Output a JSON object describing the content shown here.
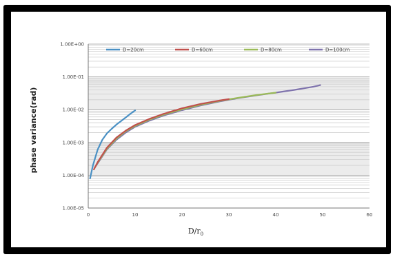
{
  "chart_data": {
    "type": "line",
    "title": "",
    "ylabel": "phase variance(rad)",
    "xlabel_main": "D/r",
    "xlabel_sub": "0",
    "y_scale": "log",
    "ylim": [
      1e-05,
      1
    ],
    "xlim": [
      0,
      60
    ],
    "x_ticks": [
      0,
      10,
      20,
      30,
      40,
      50,
      60
    ],
    "y_ticks": [
      {
        "value": 1,
        "label": "1.00E+00"
      },
      {
        "value": 0.1,
        "label": "1.00E-01"
      },
      {
        "value": 0.01,
        "label": "1.00E-02"
      },
      {
        "value": 0.001,
        "label": "1.00E-03"
      },
      {
        "value": 0.0001,
        "label": "1.00E-04"
      },
      {
        "value": 1e-05,
        "label": "1.00E-05"
      }
    ],
    "grid": true,
    "legend_position": "top",
    "series": [
      {
        "name": "D=20cm",
        "color": "#4a90c4",
        "points": [
          [
            0.4,
            8e-05
          ],
          [
            1,
            0.0002
          ],
          [
            2,
            0.0006
          ],
          [
            3,
            0.0012
          ],
          [
            4,
            0.0019
          ],
          [
            5,
            0.0026
          ],
          [
            6,
            0.0035
          ],
          [
            7,
            0.0045
          ],
          [
            8,
            0.0058
          ],
          [
            9,
            0.0075
          ],
          [
            10,
            0.0095
          ]
        ]
      },
      {
        "name": "D=60cm",
        "color": "#c0504d",
        "points": [
          [
            1.2,
            0.00015
          ],
          [
            2,
            0.00025
          ],
          [
            4,
            0.0007
          ],
          [
            6,
            0.0014
          ],
          [
            8,
            0.0023
          ],
          [
            10,
            0.0034
          ],
          [
            13,
            0.0052
          ],
          [
            16,
            0.0074
          ],
          [
            20,
            0.011
          ],
          [
            24,
            0.015
          ],
          [
            28,
            0.019
          ],
          [
            30,
            0.021
          ]
        ]
      },
      {
        "name": "D=80cm",
        "color": "#9bbb59",
        "points": [
          [
            1.4,
            0.00017
          ],
          [
            2,
            0.00024
          ],
          [
            4,
            0.00065
          ],
          [
            6,
            0.0013
          ],
          [
            8,
            0.0022
          ],
          [
            10,
            0.0032
          ],
          [
            13,
            0.0049
          ],
          [
            16,
            0.007
          ],
          [
            20,
            0.0102
          ],
          [
            24,
            0.0142
          ],
          [
            28,
            0.0185
          ],
          [
            32,
            0.023
          ],
          [
            36,
            0.028
          ],
          [
            40,
            0.033
          ]
        ]
      },
      {
        "name": "D=100cm",
        "color": "#7f73ad",
        "points": [
          [
            1.5,
            0.00018
          ],
          [
            2,
            0.00023
          ],
          [
            4,
            0.00062
          ],
          [
            6,
            0.0012
          ],
          [
            8,
            0.002
          ],
          [
            10,
            0.003
          ],
          [
            13,
            0.0046
          ],
          [
            16,
            0.0066
          ],
          [
            20,
            0.0096
          ],
          [
            24,
            0.0135
          ],
          [
            28,
            0.0178
          ],
          [
            32,
            0.0225
          ],
          [
            36,
            0.0275
          ],
          [
            40,
            0.033
          ],
          [
            44,
            0.04
          ],
          [
            48,
            0.05
          ],
          [
            49.5,
            0.056
          ]
        ]
      }
    ]
  }
}
